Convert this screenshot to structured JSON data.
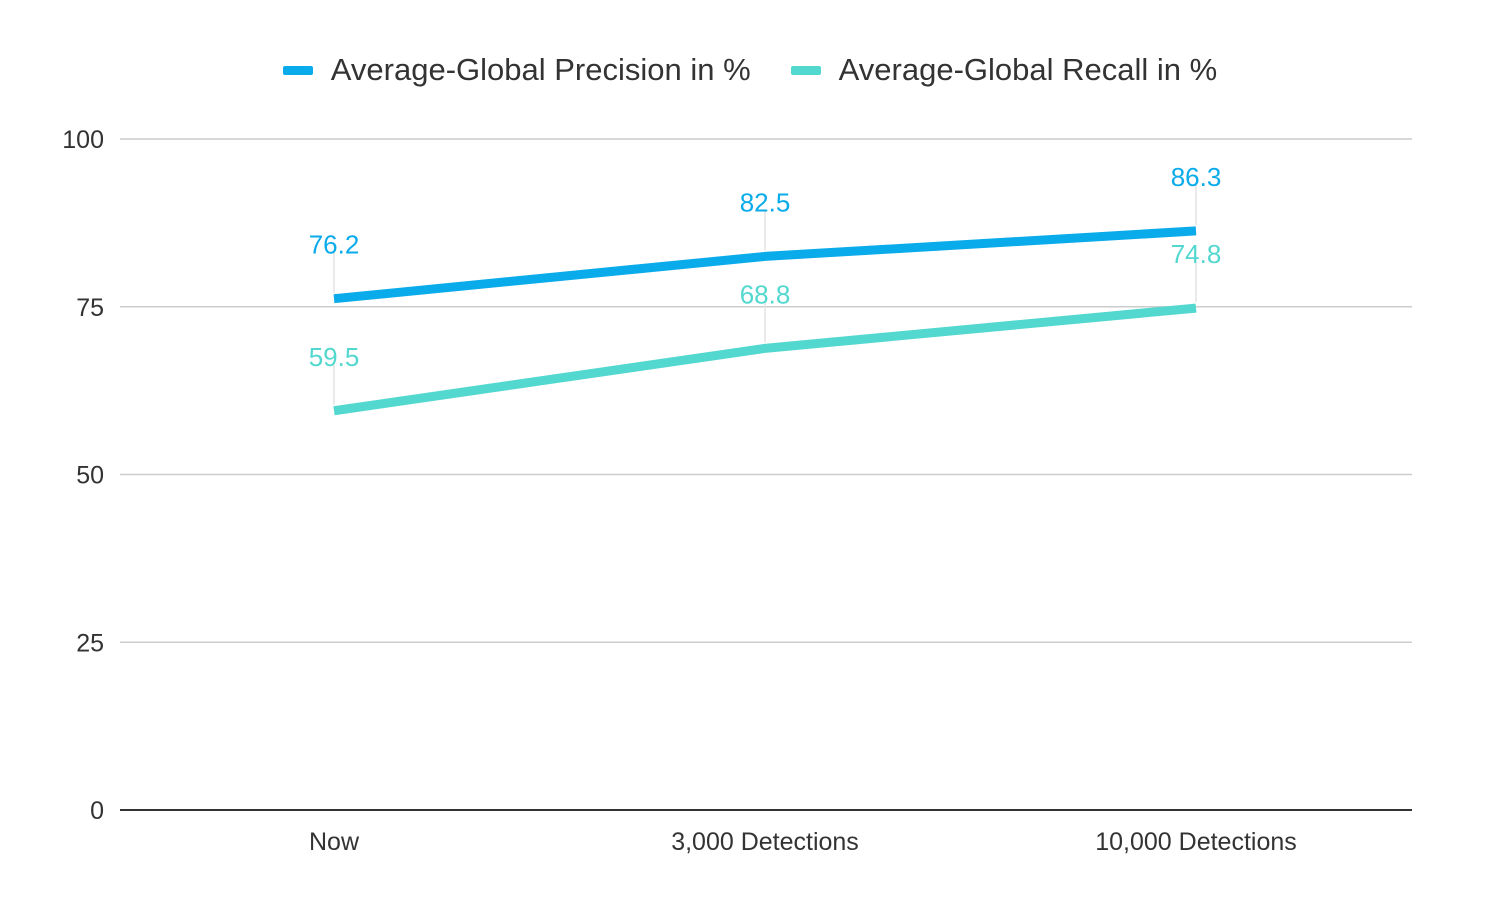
{
  "chart_data": {
    "type": "line",
    "categories": [
      "Now",
      "3,000 Detections",
      "10,000 Detections"
    ],
    "series": [
      {
        "name": "Average-Global Precision in %",
        "values": [
          76.2,
          82.5,
          86.3
        ],
        "color": "#0aabea"
      },
      {
        "name": "Average-Global Recall in %",
        "values": [
          59.5,
          68.8,
          74.8
        ],
        "color": "#52d8cf"
      }
    ],
    "yticks": [
      "0",
      "25",
      "50",
      "75",
      "100"
    ],
    "ylim": [
      0,
      100
    ],
    "grid": true,
    "legend_position": "top",
    "title": "",
    "xlabel": "",
    "ylabel": ""
  }
}
